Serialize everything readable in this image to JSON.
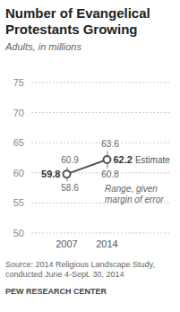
{
  "chart_data": {
    "type": "line",
    "title": "Number of Evangelical Protestants Growing",
    "subtitle": "Adults, in millions",
    "categories": [
      "2007",
      "2014"
    ],
    "values": [
      59.8,
      62.2
    ],
    "error_low": [
      58.6,
      60.8
    ],
    "error_high": [
      60.9,
      63.6
    ],
    "color": "#555555",
    "ylim": [
      50,
      75
    ],
    "yticks": [
      50,
      55,
      60,
      65,
      70,
      75
    ],
    "grid": true,
    "data_labels": true,
    "marker": "circle",
    "annotations": [
      "Estimate",
      "Range, given margin of error"
    ],
    "source": "Source: 2014 Religious Landscape Study, conducted June 4-Sept. 30, 2014",
    "credit": "PEW RESEARCH CENTER"
  }
}
